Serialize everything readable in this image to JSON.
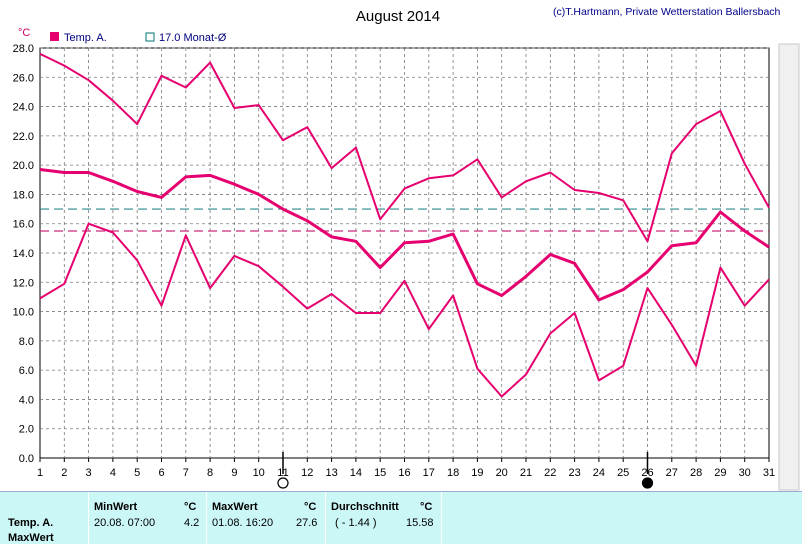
{
  "header": {
    "title": "August 2014",
    "copyright": "(c)T.Hartmann, Private Wetterstation Ballersbach",
    "unit": "°C"
  },
  "legend": {
    "series_label": "Temp. A.",
    "avg_label": "17.0 Monat-Ø"
  },
  "colors": {
    "series": "#e6006f",
    "monthly_avg_line": "#2a8a8a",
    "longterm_avg_line": "#cc2b7a",
    "grid": "#7a7a7a",
    "stats_bg": "#ccf7f7"
  },
  "chart_data": {
    "type": "line",
    "title": "August 2014",
    "ylabel": "°C",
    "x": [
      1,
      2,
      3,
      4,
      5,
      6,
      7,
      8,
      9,
      10,
      11,
      12,
      13,
      14,
      15,
      16,
      17,
      18,
      19,
      20,
      21,
      22,
      23,
      24,
      25,
      26,
      27,
      28,
      29,
      30,
      31
    ],
    "xlim": [
      1,
      31
    ],
    "ylim": [
      0,
      28
    ],
    "yticks": [
      "0.0",
      "2.0",
      "4.0",
      "6.0",
      "8.0",
      "10.0",
      "12.0",
      "14.0",
      "16.0",
      "18.0",
      "20.0",
      "22.0",
      "24.0",
      "26.0",
      "28.0"
    ],
    "grid": true,
    "legend_position": "top-left",
    "series": [
      {
        "role": "max",
        "values": [
          27.6,
          26.8,
          25.8,
          24.4,
          22.8,
          26.1,
          25.3,
          27.0,
          23.9,
          24.1,
          21.7,
          22.6,
          19.8,
          21.2,
          16.3,
          18.4,
          19.1,
          19.3,
          20.4,
          17.8,
          18.9,
          19.5,
          18.3,
          18.1,
          17.6,
          14.8,
          20.8,
          22.8,
          23.7,
          20.1,
          17.1
        ]
      },
      {
        "role": "mean",
        "values": [
          19.7,
          19.5,
          19.5,
          18.9,
          18.2,
          17.8,
          19.2,
          19.3,
          18.7,
          18.0,
          17.0,
          16.2,
          15.1,
          14.8,
          13.0,
          14.7,
          14.8,
          15.3,
          11.9,
          11.1,
          12.4,
          13.9,
          13.3,
          10.8,
          11.5,
          12.7,
          14.5,
          14.7,
          16.8,
          15.5,
          14.4
        ]
      },
      {
        "role": "min",
        "values": [
          10.9,
          11.9,
          16.0,
          15.4,
          13.5,
          10.4,
          15.2,
          11.6,
          13.8,
          13.1,
          11.7,
          10.2,
          11.2,
          9.9,
          9.9,
          12.1,
          8.8,
          11.1,
          6.1,
          4.2,
          5.7,
          8.5,
          9.9,
          5.3,
          6.3,
          11.6,
          9.1,
          6.3,
          13.0,
          10.4,
          12.2
        ]
      }
    ],
    "reference_lines": [
      {
        "name": "17.0 Monat-Ø",
        "value": 17.0,
        "style": "dashed",
        "color": "#2a8a8a"
      },
      {
        "value": 15.5,
        "style": "dashed",
        "color": "#cc2b7a"
      }
    ],
    "moon_phases": [
      {
        "day": 11,
        "phase": "full"
      },
      {
        "day": 26,
        "phase": "new"
      }
    ]
  },
  "stats": {
    "row_label": "Temp. A.",
    "row_label2": "MaxWert",
    "min_header": "MinWert",
    "min_unit": "°C",
    "min_datetime": "20.08.  07:00",
    "min_value": "4.2",
    "max_header": "MaxWert",
    "max_unit": "°C",
    "max_datetime": "01.08.  16:20",
    "max_value": "27.6",
    "avg_header": "Durchschnitt",
    "avg_unit": "°C",
    "avg_deviation": "( - 1.44 )",
    "avg_value": "15.58"
  }
}
